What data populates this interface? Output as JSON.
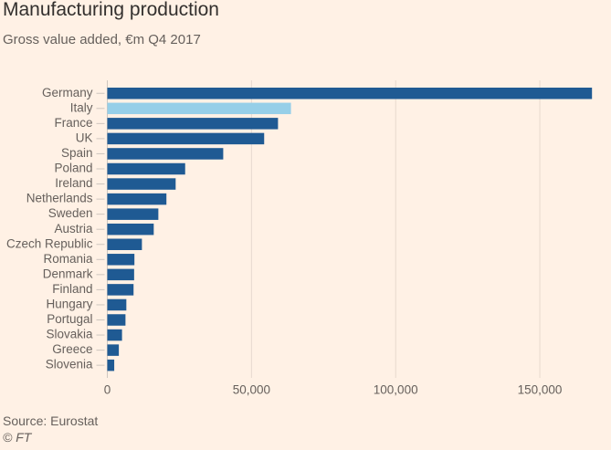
{
  "header": {
    "title": "Manufacturing production",
    "subtitle": "Gross value added, €m Q4 2017"
  },
  "footer": {
    "source": "Source: Eurostat",
    "copyright": "© FT"
  },
  "colors": {
    "background": "#FFF1E5",
    "bar": "#1F5A93",
    "highlight": "#96CFE8",
    "gridline": "#E6D9CE",
    "text": "#66605C",
    "title": "#33302E"
  },
  "chart_data": {
    "type": "bar",
    "orientation": "horizontal",
    "title": "Manufacturing production",
    "subtitle": "Gross value added, €m Q4 2017",
    "xlabel": "",
    "ylabel": "",
    "categories": [
      "Germany",
      "Italy",
      "France",
      "UK",
      "Spain",
      "Poland",
      "Ireland",
      "Netherlands",
      "Sweden",
      "Austria",
      "Czech Republic",
      "Romania",
      "Denmark",
      "Finland",
      "Hungary",
      "Portugal",
      "Slovakia",
      "Greece",
      "Slovenia"
    ],
    "values": [
      168100,
      63700,
      59200,
      54400,
      40200,
      27000,
      23700,
      20500,
      17700,
      16100,
      12000,
      9400,
      9300,
      9100,
      6600,
      6300,
      5100,
      4000,
      2400
    ],
    "highlighted": [
      "Italy"
    ],
    "xlim": [
      0,
      170000
    ],
    "xticks": [
      0,
      50000,
      100000,
      150000
    ],
    "xtick_labels": [
      "0",
      "50,000",
      "100,000",
      "150,000"
    ],
    "grid": "vertical",
    "legend": "none",
    "source": "Source: Eurostat"
  }
}
